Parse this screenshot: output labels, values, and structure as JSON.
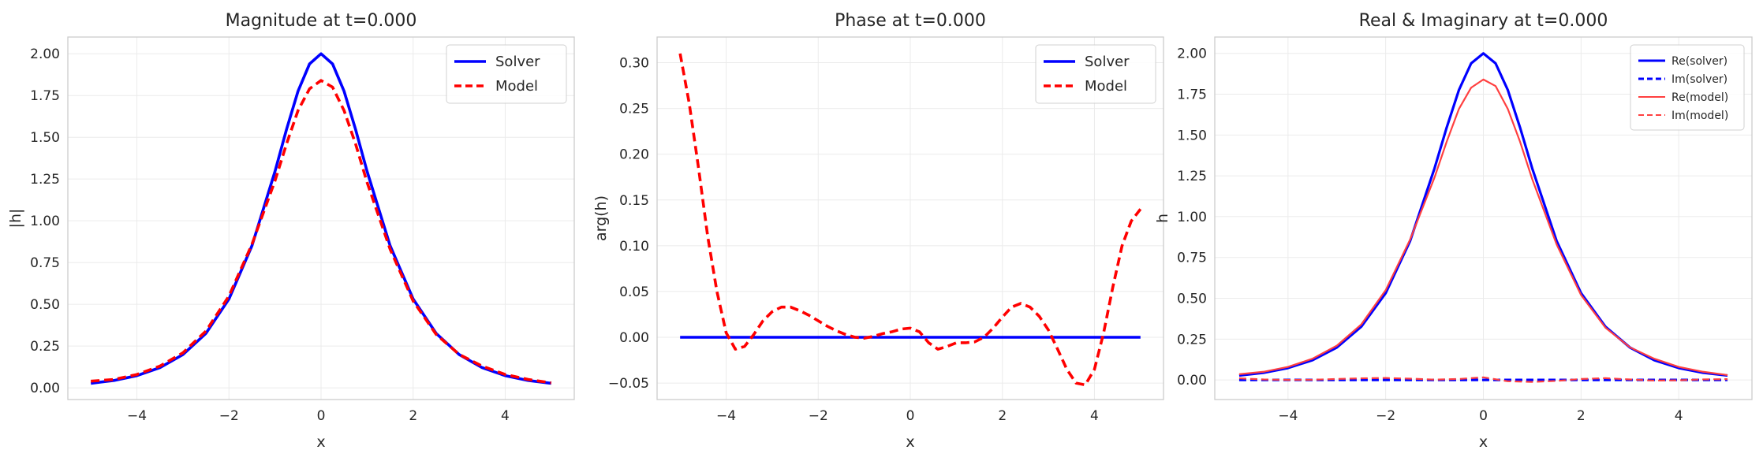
{
  "chart_data": [
    {
      "type": "line",
      "title": "Magnitude at t=0.000",
      "xlabel": "x",
      "ylabel": "|h|",
      "xlim": [
        -5.5,
        5.5
      ],
      "ylim": [
        -0.07,
        2.1
      ],
      "xticks": [
        -4,
        -2,
        0,
        2,
        4
      ],
      "yticks": [
        0.0,
        0.25,
        0.5,
        0.75,
        1.0,
        1.25,
        1.5,
        1.75,
        2.0
      ],
      "xtick_labels": [
        "−4",
        "−2",
        "0",
        "2",
        "4"
      ],
      "ytick_labels": [
        "0.00",
        "0.25",
        "0.50",
        "0.75",
        "1.00",
        "1.25",
        "1.50",
        "1.75",
        "2.00"
      ],
      "grid": true,
      "legend": "top-right",
      "series": [
        {
          "name": "Solver",
          "color": "#0000ff",
          "style": "solid",
          "x": [
            -5,
            -4.5,
            -4,
            -3.5,
            -3,
            -2.5,
            -2,
            -1.5,
            -1,
            -0.75,
            -0.5,
            -0.25,
            0,
            0.25,
            0.5,
            0.75,
            1,
            1.5,
            2,
            2.5,
            3,
            3.5,
            4,
            4.5,
            5
          ],
          "y": [
            0.027,
            0.044,
            0.073,
            0.121,
            0.199,
            0.326,
            0.532,
            0.851,
            1.296,
            1.547,
            1.776,
            1.939,
            2.0,
            1.939,
            1.776,
            1.547,
            1.296,
            0.851,
            0.532,
            0.326,
            0.199,
            0.121,
            0.073,
            0.044,
            0.027
          ]
        },
        {
          "name": "Model",
          "color": "#ff0000",
          "style": "dashed",
          "x": [
            -5,
            -4.5,
            -4,
            -3.5,
            -3,
            -2.5,
            -2,
            -1.5,
            -1,
            -0.75,
            -0.5,
            -0.25,
            0,
            0.25,
            0.5,
            0.75,
            1,
            1.5,
            2,
            2.5,
            3,
            3.5,
            4,
            4.5,
            5
          ],
          "y": [
            0.04,
            0.05,
            0.08,
            0.13,
            0.21,
            0.34,
            0.55,
            0.86,
            1.24,
            1.46,
            1.66,
            1.79,
            1.84,
            1.8,
            1.66,
            1.46,
            1.23,
            0.83,
            0.52,
            0.32,
            0.2,
            0.13,
            0.08,
            0.05,
            0.03
          ]
        }
      ]
    },
    {
      "type": "line",
      "title": "Phase at t=0.000",
      "xlabel": "x",
      "ylabel": "arg(h)",
      "xlim": [
        -5.5,
        5.5
      ],
      "ylim": [
        -0.068,
        0.328
      ],
      "xticks": [
        -4,
        -2,
        0,
        2,
        4
      ],
      "yticks": [
        -0.05,
        0.0,
        0.05,
        0.1,
        0.15,
        0.2,
        0.25,
        0.3
      ],
      "xtick_labels": [
        "−4",
        "−2",
        "0",
        "2",
        "4"
      ],
      "ytick_labels": [
        "−0.05",
        "0.00",
        "0.05",
        "0.10",
        "0.15",
        "0.20",
        "0.25",
        "0.30"
      ],
      "grid": true,
      "legend": "top-right",
      "series": [
        {
          "name": "Solver",
          "color": "#0000ff",
          "style": "solid",
          "x": [
            -5,
            5
          ],
          "y": [
            0.0,
            0.0
          ]
        },
        {
          "name": "Model",
          "color": "#ff0000",
          "style": "dashed",
          "x": [
            -5,
            -4.8,
            -4.6,
            -4.4,
            -4.2,
            -4.0,
            -3.8,
            -3.6,
            -3.4,
            -3.2,
            -3.0,
            -2.8,
            -2.6,
            -2.4,
            -2.2,
            -2.0,
            -1.8,
            -1.6,
            -1.4,
            -1.2,
            -1.0,
            -0.8,
            -0.6,
            -0.4,
            -0.2,
            0.0,
            0.2,
            0.4,
            0.6,
            0.8,
            1.0,
            1.2,
            1.4,
            1.6,
            1.8,
            2.0,
            2.2,
            2.4,
            2.6,
            2.8,
            3.0,
            3.2,
            3.4,
            3.6,
            3.8,
            4.0,
            4.2,
            4.4,
            4.6,
            4.8,
            5.0
          ],
          "y": [
            0.31,
            0.255,
            0.185,
            0.11,
            0.05,
            0.005,
            -0.013,
            -0.01,
            0.003,
            0.018,
            0.028,
            0.033,
            0.033,
            0.029,
            0.024,
            0.018,
            0.012,
            0.007,
            0.003,
            0.0,
            -0.001,
            0.001,
            0.004,
            0.006,
            0.009,
            0.01,
            0.006,
            -0.006,
            -0.013,
            -0.01,
            -0.006,
            -0.006,
            -0.005,
            0.0,
            0.01,
            0.022,
            0.033,
            0.037,
            0.033,
            0.023,
            0.008,
            -0.013,
            -0.035,
            -0.05,
            -0.052,
            -0.035,
            0.005,
            0.055,
            0.1,
            0.127,
            0.14
          ]
        }
      ]
    },
    {
      "type": "line",
      "title": "Real & Imaginary at t=0.000",
      "xlabel": "x",
      "ylabel": "h",
      "xlim": [
        -5.5,
        5.5
      ],
      "ylim": [
        -0.12,
        2.1
      ],
      "xticks": [
        -4,
        -2,
        0,
        2,
        4
      ],
      "yticks": [
        0.0,
        0.25,
        0.5,
        0.75,
        1.0,
        1.25,
        1.5,
        1.75,
        2.0
      ],
      "xtick_labels": [
        "−4",
        "−2",
        "0",
        "2",
        "4"
      ],
      "ytick_labels": [
        "0.00",
        "0.25",
        "0.50",
        "0.75",
        "1.00",
        "1.25",
        "1.50",
        "1.75",
        "2.00"
      ],
      "grid": true,
      "legend": "top-right",
      "series": [
        {
          "name": "Re(solver)",
          "color": "#0000ff",
          "style": "solid",
          "x": [
            -5,
            -4.5,
            -4,
            -3.5,
            -3,
            -2.5,
            -2,
            -1.5,
            -1,
            -0.75,
            -0.5,
            -0.25,
            0,
            0.25,
            0.5,
            0.75,
            1,
            1.5,
            2,
            2.5,
            3,
            3.5,
            4,
            4.5,
            5
          ],
          "y": [
            0.027,
            0.044,
            0.073,
            0.121,
            0.199,
            0.326,
            0.532,
            0.851,
            1.296,
            1.547,
            1.776,
            1.939,
            2.0,
            1.939,
            1.776,
            1.547,
            1.296,
            0.851,
            0.532,
            0.326,
            0.199,
            0.121,
            0.073,
            0.044,
            0.027
          ]
        },
        {
          "name": "Im(solver)",
          "color": "#0000ff",
          "style": "dashed",
          "x": [
            -5,
            5
          ],
          "y": [
            0.0,
            0.0
          ]
        },
        {
          "name": "Re(model)",
          "color": "#ff4040",
          "style": "solid",
          "x": [
            -5,
            -4.5,
            -4,
            -3.5,
            -3,
            -2.5,
            -2,
            -1.5,
            -1,
            -0.75,
            -0.5,
            -0.25,
            0,
            0.25,
            0.5,
            0.75,
            1,
            1.5,
            2,
            2.5,
            3,
            3.5,
            4,
            4.5,
            5
          ],
          "y": [
            0.035,
            0.05,
            0.08,
            0.13,
            0.21,
            0.34,
            0.55,
            0.86,
            1.24,
            1.46,
            1.66,
            1.79,
            1.84,
            1.8,
            1.66,
            1.46,
            1.23,
            0.83,
            0.52,
            0.32,
            0.2,
            0.13,
            0.08,
            0.05,
            0.03
          ]
        },
        {
          "name": "Im(model)",
          "color": "#ff4040",
          "style": "dashed",
          "x": [
            -5,
            -4.5,
            -4,
            -3.5,
            -3,
            -2.5,
            -2,
            -1.5,
            -1,
            -0.5,
            0,
            0.5,
            1,
            1.5,
            2,
            2.5,
            3,
            3.5,
            4,
            4.5,
            5
          ],
          "y": [
            0.01,
            0.003,
            0.0,
            0.001,
            0.006,
            0.01,
            0.012,
            0.008,
            0.002,
            0.006,
            0.016,
            -0.008,
            -0.012,
            -0.006,
            0.006,
            0.011,
            0.003,
            -0.004,
            -0.002,
            0.003,
            0.005
          ]
        }
      ]
    }
  ]
}
